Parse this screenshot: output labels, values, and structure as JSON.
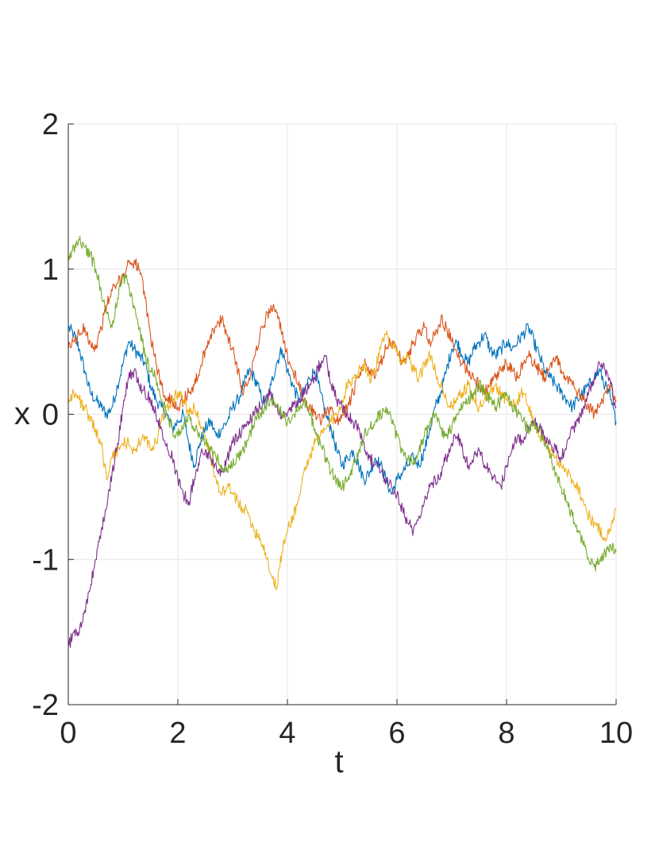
{
  "chart_data": {
    "type": "line",
    "title": "",
    "xlabel": "t",
    "ylabel": "x",
    "xlim": [
      0,
      10
    ],
    "ylim": [
      -2,
      2
    ],
    "xticks": [
      0,
      2,
      4,
      6,
      8,
      10
    ],
    "yticks": [
      -2,
      -1,
      0,
      1,
      2
    ],
    "grid": true,
    "legend": "none",
    "series": [
      {
        "color": "#0072BD",
        "x": [
          0,
          0.1,
          0.2,
          0.3,
          0.4,
          0.5,
          0.6,
          0.7,
          0.8,
          0.9,
          1.0,
          1.1,
          1.2,
          1.3,
          1.4,
          1.5,
          1.6,
          1.7,
          1.8,
          1.9,
          2.0,
          2.1,
          2.2,
          2.3,
          2.4,
          2.5,
          2.6,
          2.7,
          2.8,
          2.9,
          3.0,
          3.1,
          3.2,
          3.3,
          3.4,
          3.5,
          3.6,
          3.7,
          3.8,
          3.9,
          4.0,
          4.1,
          4.2,
          4.3,
          4.4,
          4.5,
          4.6,
          4.7,
          4.8,
          4.9,
          5.0,
          5.1,
          5.2,
          5.3,
          5.4,
          5.5,
          5.6,
          5.7,
          5.8,
          5.9,
          6.0,
          6.1,
          6.2,
          6.3,
          6.4,
          6.5,
          6.6,
          6.7,
          6.8,
          6.9,
          7.0,
          7.1,
          7.2,
          7.3,
          7.4,
          7.5,
          7.6,
          7.7,
          7.8,
          7.9,
          8.0,
          8.1,
          8.2,
          8.3,
          8.4,
          8.5,
          8.6,
          8.7,
          8.8,
          8.9,
          9.0,
          9.1,
          9.2,
          9.3,
          9.4,
          9.5,
          9.6,
          9.7,
          9.8,
          9.9,
          10.0
        ],
        "y": [
          0.6,
          0.55,
          0.45,
          0.3,
          0.15,
          0.1,
          0.05,
          0.0,
          0.05,
          0.2,
          0.35,
          0.5,
          0.45,
          0.4,
          0.35,
          0.2,
          0.1,
          0.05,
          0.0,
          -0.1,
          -0.05,
          0.0,
          -0.2,
          -0.35,
          -0.2,
          -0.1,
          -0.05,
          -0.15,
          -0.1,
          -0.05,
          0.05,
          0.1,
          0.2,
          0.3,
          0.25,
          0.15,
          0.05,
          0.2,
          0.35,
          0.45,
          0.3,
          0.2,
          0.1,
          0.15,
          0.25,
          0.3,
          0.15,
          0.0,
          -0.1,
          -0.25,
          -0.35,
          -0.3,
          -0.25,
          -0.35,
          -0.45,
          -0.4,
          -0.3,
          -0.35,
          -0.45,
          -0.55,
          -0.45,
          -0.4,
          -0.35,
          -0.3,
          -0.35,
          -0.25,
          -0.1,
          0.05,
          0.15,
          0.3,
          0.45,
          0.5,
          0.4,
          0.35,
          0.45,
          0.5,
          0.55,
          0.45,
          0.4,
          0.45,
          0.5,
          0.45,
          0.5,
          0.55,
          0.6,
          0.5,
          0.4,
          0.3,
          0.25,
          0.2,
          0.15,
          0.1,
          0.05,
          0.1,
          0.15,
          0.2,
          0.25,
          0.3,
          0.2,
          0.1,
          -0.05
        ]
      },
      {
        "color": "#D95319",
        "x": [
          0,
          0.1,
          0.2,
          0.3,
          0.4,
          0.5,
          0.6,
          0.7,
          0.8,
          0.9,
          1.0,
          1.1,
          1.2,
          1.3,
          1.4,
          1.5,
          1.6,
          1.7,
          1.8,
          1.9,
          2.0,
          2.1,
          2.2,
          2.3,
          2.4,
          2.5,
          2.6,
          2.7,
          2.8,
          2.9,
          3.0,
          3.1,
          3.2,
          3.3,
          3.4,
          3.5,
          3.6,
          3.7,
          3.8,
          3.9,
          4.0,
          4.1,
          4.2,
          4.3,
          4.4,
          4.5,
          4.6,
          4.7,
          4.8,
          4.9,
          5.0,
          5.1,
          5.2,
          5.3,
          5.4,
          5.5,
          5.6,
          5.7,
          5.8,
          5.9,
          6.0,
          6.1,
          6.2,
          6.3,
          6.4,
          6.5,
          6.6,
          6.7,
          6.8,
          6.9,
          7.0,
          7.1,
          7.2,
          7.3,
          7.4,
          7.5,
          7.6,
          7.7,
          7.8,
          7.9,
          8.0,
          8.1,
          8.2,
          8.3,
          8.4,
          8.5,
          8.6,
          8.7,
          8.8,
          8.9,
          9.0,
          9.1,
          9.2,
          9.3,
          9.4,
          9.5,
          9.6,
          9.7,
          9.8,
          9.9,
          10.0
        ],
        "y": [
          0.45,
          0.5,
          0.55,
          0.6,
          0.5,
          0.45,
          0.6,
          0.75,
          0.85,
          0.9,
          0.95,
          1.05,
          1.05,
          1.0,
          0.8,
          0.55,
          0.35,
          0.2,
          0.1,
          0.1,
          0.05,
          0.1,
          0.15,
          0.2,
          0.3,
          0.45,
          0.55,
          0.6,
          0.65,
          0.55,
          0.45,
          0.3,
          0.15,
          0.25,
          0.4,
          0.55,
          0.65,
          0.75,
          0.7,
          0.55,
          0.4,
          0.3,
          0.2,
          0.1,
          0.05,
          0.0,
          -0.05,
          0.0,
          0.05,
          -0.05,
          0.0,
          0.05,
          0.15,
          0.25,
          0.35,
          0.3,
          0.25,
          0.35,
          0.45,
          0.5,
          0.45,
          0.35,
          0.4,
          0.5,
          0.55,
          0.6,
          0.5,
          0.55,
          0.65,
          0.6,
          0.5,
          0.4,
          0.35,
          0.3,
          0.25,
          0.2,
          0.15,
          0.2,
          0.25,
          0.3,
          0.35,
          0.3,
          0.25,
          0.35,
          0.4,
          0.35,
          0.3,
          0.25,
          0.35,
          0.4,
          0.3,
          0.25,
          0.2,
          0.15,
          0.1,
          0.05,
          0.0,
          0.05,
          0.15,
          0.2,
          0.1
        ]
      },
      {
        "color": "#EDB120",
        "x": [
          0,
          0.1,
          0.2,
          0.3,
          0.4,
          0.5,
          0.6,
          0.7,
          0.8,
          0.9,
          1.0,
          1.1,
          1.2,
          1.3,
          1.4,
          1.5,
          1.6,
          1.7,
          1.8,
          1.9,
          2.0,
          2.1,
          2.2,
          2.3,
          2.4,
          2.5,
          2.6,
          2.7,
          2.8,
          2.9,
          3.0,
          3.1,
          3.2,
          3.3,
          3.4,
          3.5,
          3.6,
          3.7,
          3.8,
          3.9,
          4.0,
          4.1,
          4.2,
          4.3,
          4.4,
          4.5,
          4.6,
          4.7,
          4.8,
          4.9,
          5.0,
          5.1,
          5.2,
          5.3,
          5.4,
          5.5,
          5.6,
          5.7,
          5.8,
          5.9,
          6.0,
          6.1,
          6.2,
          6.3,
          6.4,
          6.5,
          6.6,
          6.7,
          6.8,
          6.9,
          7.0,
          7.1,
          7.2,
          7.3,
          7.4,
          7.5,
          7.6,
          7.7,
          7.8,
          7.9,
          8.0,
          8.1,
          8.2,
          8.3,
          8.4,
          8.5,
          8.6,
          8.7,
          8.8,
          8.9,
          9.0,
          9.1,
          9.2,
          9.3,
          9.4,
          9.5,
          9.6,
          9.7,
          9.8,
          9.9,
          10.0
        ],
        "y": [
          0.1,
          0.15,
          0.1,
          0.05,
          -0.05,
          -0.1,
          -0.2,
          -0.45,
          -0.3,
          -0.25,
          -0.2,
          -0.2,
          -0.25,
          -0.2,
          -0.15,
          -0.25,
          -0.2,
          -0.05,
          0.05,
          0.1,
          0.15,
          0.1,
          0.0,
          0.05,
          -0.05,
          -0.15,
          -0.3,
          -0.45,
          -0.55,
          -0.5,
          -0.55,
          -0.6,
          -0.65,
          -0.7,
          -0.8,
          -0.85,
          -0.95,
          -1.1,
          -1.2,
          -0.95,
          -0.8,
          -0.7,
          -0.6,
          -0.4,
          -0.3,
          -0.2,
          -0.15,
          -0.1,
          -0.05,
          0.0,
          0.1,
          0.2,
          0.25,
          0.3,
          0.35,
          0.25,
          0.3,
          0.45,
          0.55,
          0.5,
          0.45,
          0.35,
          0.4,
          0.3,
          0.25,
          0.35,
          0.4,
          0.3,
          0.2,
          0.1,
          0.05,
          0.1,
          0.15,
          0.2,
          0.1,
          0.05,
          0.1,
          0.15,
          0.2,
          0.15,
          0.1,
          0.05,
          0.1,
          0.15,
          0.05,
          -0.05,
          -0.15,
          -0.2,
          -0.25,
          -0.3,
          -0.35,
          -0.4,
          -0.45,
          -0.5,
          -0.6,
          -0.7,
          -0.75,
          -0.8,
          -0.85,
          -0.8,
          -0.65
        ]
      },
      {
        "color": "#7E2F8E",
        "x": [
          0,
          0.1,
          0.2,
          0.3,
          0.4,
          0.5,
          0.6,
          0.7,
          0.8,
          0.9,
          1.0,
          1.1,
          1.2,
          1.3,
          1.4,
          1.5,
          1.6,
          1.7,
          1.8,
          1.9,
          2.0,
          2.1,
          2.2,
          2.3,
          2.4,
          2.5,
          2.6,
          2.7,
          2.8,
          2.9,
          3.0,
          3.1,
          3.2,
          3.3,
          3.4,
          3.5,
          3.6,
          3.7,
          3.8,
          3.9,
          4.0,
          4.1,
          4.2,
          4.3,
          4.4,
          4.5,
          4.6,
          4.7,
          4.8,
          4.9,
          5.0,
          5.1,
          5.2,
          5.3,
          5.4,
          5.5,
          5.6,
          5.7,
          5.8,
          5.9,
          6.0,
          6.1,
          6.2,
          6.3,
          6.4,
          6.5,
          6.6,
          6.7,
          6.8,
          6.9,
          7.0,
          7.1,
          7.2,
          7.3,
          7.4,
          7.5,
          7.6,
          7.7,
          7.8,
          7.9,
          8.0,
          8.1,
          8.2,
          8.3,
          8.4,
          8.5,
          8.6,
          8.7,
          8.8,
          8.9,
          9.0,
          9.1,
          9.2,
          9.3,
          9.4,
          9.5,
          9.6,
          9.7,
          9.8,
          9.9,
          10.0
        ],
        "y": [
          -1.6,
          -1.5,
          -1.5,
          -1.35,
          -1.2,
          -1.0,
          -0.8,
          -0.65,
          -0.4,
          -0.2,
          0.05,
          0.25,
          0.3,
          0.2,
          0.15,
          0.1,
          0.0,
          -0.1,
          -0.2,
          -0.3,
          -0.45,
          -0.55,
          -0.6,
          -0.45,
          -0.3,
          -0.25,
          -0.3,
          -0.35,
          -0.4,
          -0.3,
          -0.2,
          -0.15,
          -0.1,
          -0.05,
          0.0,
          0.05,
          0.1,
          0.15,
          0.05,
          0.0,
          0.0,
          0.05,
          0.1,
          0.15,
          0.2,
          0.25,
          0.35,
          0.4,
          0.2,
          0.1,
          0.05,
          0.0,
          -0.05,
          -0.1,
          -0.2,
          -0.3,
          -0.35,
          -0.4,
          -0.45,
          -0.5,
          -0.55,
          -0.65,
          -0.75,
          -0.8,
          -0.7,
          -0.6,
          -0.5,
          -0.45,
          -0.4,
          -0.3,
          -0.2,
          -0.15,
          -0.25,
          -0.35,
          -0.3,
          -0.25,
          -0.35,
          -0.4,
          -0.45,
          -0.5,
          -0.35,
          -0.25,
          -0.15,
          -0.2,
          -0.1,
          -0.05,
          -0.1,
          -0.15,
          -0.2,
          -0.25,
          -0.3,
          -0.2,
          -0.1,
          -0.05,
          0.05,
          0.15,
          0.25,
          0.35,
          0.3,
          0.2,
          0.05
        ]
      },
      {
        "color": "#77AC30",
        "x": [
          0,
          0.1,
          0.2,
          0.3,
          0.4,
          0.5,
          0.6,
          0.7,
          0.8,
          0.9,
          1.0,
          1.1,
          1.2,
          1.3,
          1.4,
          1.5,
          1.6,
          1.7,
          1.8,
          1.9,
          2.0,
          2.1,
          2.2,
          2.3,
          2.4,
          2.5,
          2.6,
          2.7,
          2.8,
          2.9,
          3.0,
          3.1,
          3.2,
          3.3,
          3.4,
          3.5,
          3.6,
          3.7,
          3.8,
          3.9,
          4.0,
          4.1,
          4.2,
          4.3,
          4.4,
          4.5,
          4.6,
          4.7,
          4.8,
          4.9,
          5.0,
          5.1,
          5.2,
          5.3,
          5.4,
          5.5,
          5.6,
          5.7,
          5.8,
          5.9,
          6.0,
          6.1,
          6.2,
          6.3,
          6.4,
          6.5,
          6.6,
          6.7,
          6.8,
          6.9,
          7.0,
          7.1,
          7.2,
          7.3,
          7.4,
          7.5,
          7.6,
          7.7,
          7.8,
          7.9,
          8.0,
          8.1,
          8.2,
          8.3,
          8.4,
          8.5,
          8.6,
          8.7,
          8.8,
          8.9,
          9.0,
          9.1,
          9.2,
          9.3,
          9.4,
          9.5,
          9.6,
          9.7,
          9.8,
          9.9,
          10.0
        ],
        "y": [
          1.05,
          1.15,
          1.2,
          1.15,
          1.1,
          1.0,
          0.85,
          0.7,
          0.6,
          0.8,
          0.95,
          0.9,
          0.75,
          0.6,
          0.4,
          0.3,
          0.25,
          0.1,
          0.0,
          -0.1,
          -0.15,
          -0.1,
          0.0,
          -0.1,
          -0.15,
          -0.2,
          -0.25,
          -0.3,
          -0.35,
          -0.4,
          -0.35,
          -0.3,
          -0.25,
          -0.15,
          -0.05,
          0.0,
          0.05,
          0.1,
          0.05,
          0.0,
          -0.05,
          0.0,
          0.05,
          0.1,
          0.0,
          -0.1,
          -0.2,
          -0.3,
          -0.4,
          -0.45,
          -0.5,
          -0.45,
          -0.35,
          -0.25,
          -0.15,
          -0.1,
          -0.05,
          0.0,
          0.05,
          -0.05,
          -0.15,
          -0.25,
          -0.3,
          -0.35,
          -0.25,
          -0.15,
          -0.05,
          0.0,
          -0.1,
          -0.15,
          -0.1,
          0.0,
          0.05,
          0.1,
          0.15,
          0.2,
          0.15,
          0.1,
          0.05,
          0.1,
          0.15,
          0.05,
          0.0,
          -0.05,
          -0.1,
          -0.05,
          -0.1,
          -0.2,
          -0.3,
          -0.4,
          -0.5,
          -0.6,
          -0.7,
          -0.8,
          -0.9,
          -1.0,
          -1.05,
          -1.0,
          -0.95,
          -0.9,
          -0.95
        ]
      }
    ]
  }
}
